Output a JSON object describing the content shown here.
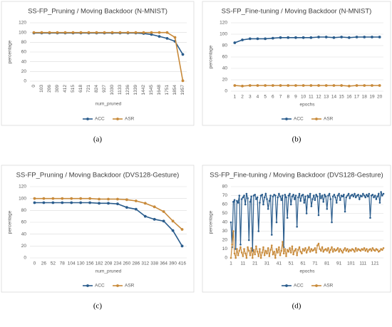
{
  "chart_data": [
    {
      "type": "line",
      "caption": "(a)",
      "title": "SS-FP_Pruning / Moving Backdoor (N-MNIST)",
      "xlabel": "num_pruned",
      "ylabel": "percentage",
      "categories": [
        "0",
        "103",
        "206",
        "309",
        "412",
        "515",
        "618",
        "721",
        "824",
        "927",
        "1030",
        "1133",
        "1236",
        "1339",
        "1442",
        "1545",
        "1648",
        "1751",
        "1854",
        "1957"
      ],
      "series": [
        {
          "name": "ACC",
          "color": "#2a5c8c",
          "values": [
            99,
            99,
            99,
            99,
            99,
            99,
            99,
            99,
            99,
            99,
            99,
            99,
            99,
            99,
            98,
            96,
            92,
            88,
            82,
            55
          ]
        },
        {
          "name": "ASR",
          "color": "#c88a3a",
          "values": [
            100,
            100,
            100,
            100,
            100,
            100,
            100,
            100,
            100,
            100,
            100,
            100,
            100,
            100,
            100,
            100,
            100,
            100,
            90,
            1
          ]
        }
      ],
      "ylim": [
        0,
        120
      ],
      "yticks": [
        0,
        20,
        40,
        60,
        80,
        100,
        120
      ],
      "grid": true,
      "legend": "bottom"
    },
    {
      "type": "line",
      "caption": "(b)",
      "title": "SS-FP_Fine-tuning / Moving Backdoor (N-MNIST)",
      "xlabel": "epochs",
      "ylabel": "percentage",
      "categories": [
        "1",
        "2",
        "3",
        "4",
        "5",
        "6",
        "7",
        "8",
        "9",
        "10",
        "11",
        "12",
        "13",
        "14",
        "15",
        "16",
        "17",
        "18",
        "19",
        "20"
      ],
      "series": [
        {
          "name": "ACC",
          "color": "#2a5c8c",
          "values": [
            85,
            90,
            92,
            92,
            92,
            93,
            94,
            94,
            94,
            94,
            94,
            95,
            95,
            94,
            95,
            94,
            95,
            95,
            95,
            95
          ]
        },
        {
          "name": "ASR",
          "color": "#c88a3a",
          "values": [
            10,
            9,
            10,
            10,
            10,
            10,
            10,
            10,
            10,
            10,
            10,
            10,
            10,
            10,
            10,
            9,
            10,
            10,
            10,
            10
          ]
        }
      ],
      "ylim": [
        0,
        120
      ],
      "yticks": [
        0,
        20,
        40,
        60,
        80,
        100,
        120
      ],
      "grid": true,
      "legend": "bottom"
    },
    {
      "type": "line",
      "caption": "(c)",
      "title": "SS-FP_Pruning / Moving Backdoor (DVS128-Gesture)",
      "xlabel": "num_pruned",
      "ylabel": "percentage",
      "categories": [
        "0",
        "26",
        "52",
        "78",
        "104",
        "130",
        "156",
        "182",
        "208",
        "234",
        "260",
        "286",
        "312",
        "338",
        "364",
        "390",
        "416"
      ],
      "series": [
        {
          "name": "ACC",
          "color": "#2a5c8c",
          "values": [
            93,
            93,
            93,
            93,
            93,
            93,
            93,
            92,
            92,
            91,
            85,
            82,
            70,
            65,
            62,
            46,
            20
          ]
        },
        {
          "name": "ASR",
          "color": "#c88a3a",
          "values": [
            100,
            100,
            100,
            100,
            100,
            100,
            100,
            99,
            99,
            99,
            98,
            96,
            92,
            86,
            78,
            62,
            48
          ]
        }
      ],
      "ylim": [
        0,
        120
      ],
      "yticks": [
        0,
        20,
        40,
        60,
        80,
        100,
        120
      ],
      "grid": true,
      "legend": "bottom"
    },
    {
      "type": "line",
      "caption": "(d)",
      "title": "SS-FP_Fine-tuning / Moving Backdoor (DVS128-Gesture)",
      "xlabel": "epochs",
      "ylabel": "percentage",
      "x": [
        1,
        2,
        3,
        4,
        5,
        6,
        7,
        8,
        9,
        10,
        11,
        12,
        13,
        14,
        15,
        16,
        17,
        18,
        19,
        20,
        21,
        22,
        23,
        24,
        25,
        26,
        27,
        28,
        29,
        30,
        31,
        32,
        33,
        34,
        35,
        36,
        37,
        38,
        39,
        40,
        41,
        42,
        43,
        44,
        45,
        46,
        47,
        48,
        49,
        50,
        51,
        52,
        53,
        54,
        55,
        56,
        57,
        58,
        59,
        60,
        61,
        62,
        63,
        64,
        65,
        66,
        67,
        68,
        69,
        70,
        71,
        72,
        73,
        74,
        75,
        76,
        77,
        78,
        79,
        80,
        81,
        82,
        83,
        84,
        85,
        86,
        87,
        88,
        89,
        90,
        91,
        92,
        93,
        94,
        95,
        96,
        97,
        98,
        99,
        100,
        101,
        102,
        103,
        104,
        105,
        106,
        107,
        108,
        109,
        110,
        111,
        112,
        113,
        114,
        115,
        116,
        117,
        118,
        119,
        120,
        121,
        122,
        123,
        124,
        125,
        126,
        127,
        128
      ],
      "series": [
        {
          "name": "ACC",
          "color": "#2a5c8c",
          "values": [
            40,
            12,
            63,
            65,
            10,
            64,
            62,
            70,
            15,
            66,
            68,
            70,
            60,
            72,
            67,
            20,
            63,
            69,
            8,
            70,
            71,
            66,
            68,
            30,
            62,
            70,
            71,
            60,
            68,
            72,
            66,
            55,
            64,
            70,
            26,
            69,
            71,
            70,
            40,
            68,
            72,
            69,
            65,
            70,
            12,
            71,
            68,
            45,
            70,
            72,
            60,
            69,
            71,
            66,
            70,
            35,
            68,
            72,
            64,
            70,
            71,
            62,
            69,
            50,
            70,
            68,
            72,
            58,
            66,
            70,
            65,
            71,
            69,
            48,
            72,
            67,
            70,
            63,
            71,
            69,
            55,
            70,
            72,
            66,
            40,
            69,
            71,
            68,
            62,
            70,
            72,
            65,
            70,
            69,
            71,
            52,
            68,
            70,
            72,
            67,
            70,
            71,
            69,
            72,
            68,
            70,
            71,
            66,
            70,
            69,
            72,
            70,
            68,
            71,
            69,
            72,
            45,
            70,
            71,
            68,
            70,
            66,
            69,
            72,
            62,
            74,
            70,
            72
          ]
        },
        {
          "name": "ASR",
          "color": "#c88a3a",
          "values": [
            0,
            15,
            30,
            5,
            0,
            10,
            3,
            8,
            12,
            6,
            2,
            10,
            5,
            0,
            12,
            8,
            3,
            11,
            0,
            9,
            4,
            13,
            7,
            2,
            10,
            0,
            6,
            12,
            3,
            8,
            5,
            11,
            2,
            9,
            14,
            4,
            7,
            0,
            10,
            6,
            12,
            3,
            8,
            18,
            5,
            10,
            2,
            9,
            7,
            11,
            6,
            13,
            4,
            8,
            10,
            3,
            9,
            12,
            7,
            5,
            10,
            8,
            11,
            6,
            9,
            12,
            7,
            10,
            8,
            9,
            11,
            6,
            14,
            16,
            10,
            8,
            12,
            7,
            9,
            10,
            8,
            11,
            6,
            9,
            12,
            7,
            10,
            8,
            9,
            11,
            7,
            10,
            8,
            6,
            9,
            11,
            8,
            10,
            7,
            9,
            8,
            10,
            9,
            7,
            11,
            8,
            10,
            9,
            8,
            10,
            9,
            11,
            8,
            10,
            7,
            9,
            10,
            8,
            11,
            9,
            8,
            10,
            9,
            7,
            8,
            10,
            9,
            11
          ]
        }
      ],
      "xlim": [
        1,
        128
      ],
      "xticks": [
        1,
        11,
        21,
        31,
        41,
        51,
        61,
        71,
        81,
        91,
        101,
        111,
        121
      ],
      "ylim": [
        0,
        80
      ],
      "yticks": [
        0,
        10,
        20,
        30,
        40,
        50,
        60,
        70,
        80
      ],
      "grid": true,
      "legend": "bottom"
    }
  ]
}
